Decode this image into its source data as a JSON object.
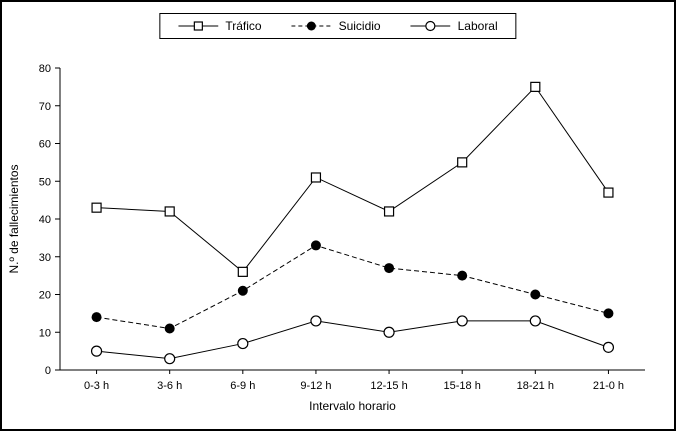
{
  "chart_data": {
    "type": "line",
    "title": "",
    "categories": [
      "0-3 h",
      "3-6 h",
      "6-9 h",
      "9-12 h",
      "12-15 h",
      "15-18 h",
      "18-21 h",
      "21-0 h"
    ],
    "series": [
      {
        "name": "Tráfico",
        "values": [
          43,
          42,
          26,
          51,
          42,
          55,
          75,
          47
        ],
        "marker": "open-square",
        "line": "solid"
      },
      {
        "name": "Suicidio",
        "values": [
          14,
          11,
          21,
          33,
          27,
          25,
          20,
          15
        ],
        "marker": "filled-circle",
        "line": "dashed"
      },
      {
        "name": "Laboral",
        "values": [
          5,
          3,
          7,
          13,
          10,
          13,
          13,
          6
        ],
        "marker": "open-circle",
        "line": "solid"
      }
    ],
    "xlabel": "Intervalo horario",
    "ylabel": "N.º de fallecimientos",
    "ylim": [
      0,
      80
    ],
    "ytick_step": 10,
    "grid": false,
    "legend_position": "top-center"
  },
  "colors": {
    "stroke": "#000000",
    "background": "#ffffff"
  }
}
